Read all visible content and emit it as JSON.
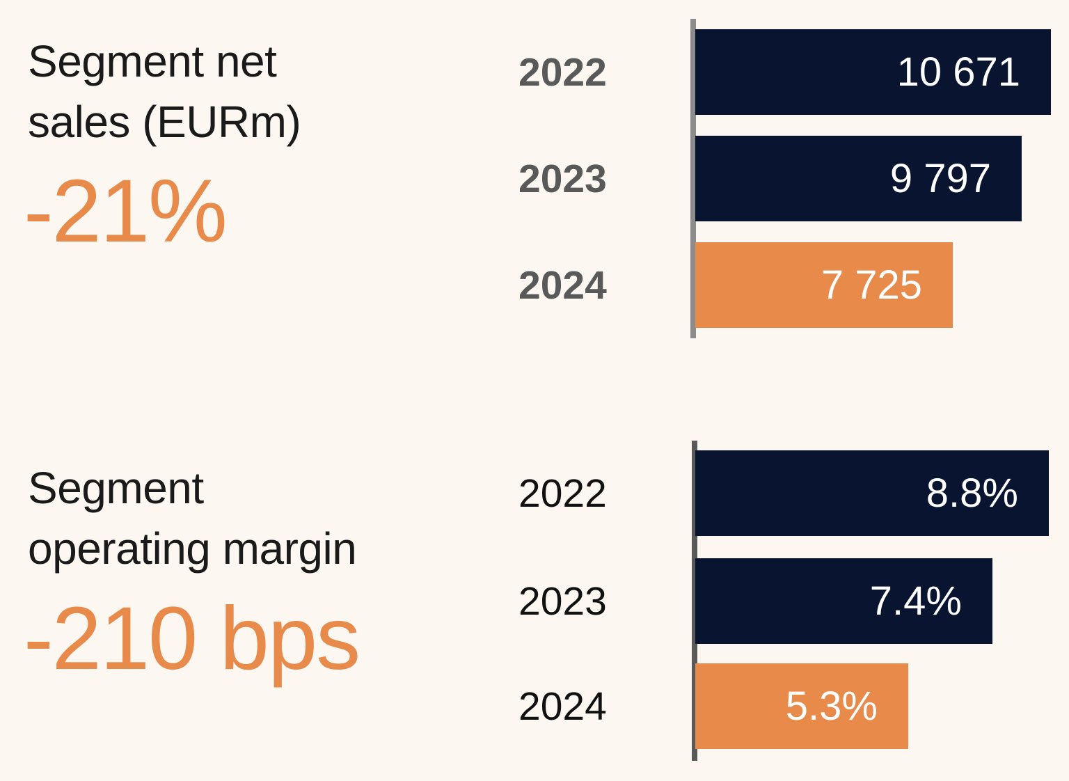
{
  "background": "#FCF7F1",
  "colors": {
    "navy": "#081430",
    "orange": "#E78A4A",
    "axis_top": "#8C8C8C",
    "axis_bottom": "#595959",
    "year_top": "#595959",
    "year_bottom": "#111111",
    "title_text": "#1A1A1A",
    "stat_text": "#E78A4A",
    "value_text": "#FFFFFF"
  },
  "chart_data": [
    {
      "type": "bar",
      "orientation": "horizontal",
      "title": "Segment net sales (EURm)",
      "title_lines": [
        "Segment net",
        "sales (EURm)"
      ],
      "highlight_stat": "-21%",
      "categories": [
        "2022",
        "2023",
        "2024"
      ],
      "values": [
        10671,
        9797,
        7725
      ],
      "value_labels": [
        "10 671",
        "9 797",
        "7 725"
      ],
      "bar_colors": [
        "#081430",
        "#081430",
        "#E78A4A"
      ],
      "xlim": [
        0,
        10671
      ],
      "grid": false,
      "legend": "none",
      "value_label_position": "inside-right",
      "highlight_note": "2024 bar highlighted in orange"
    },
    {
      "type": "bar",
      "orientation": "horizontal",
      "title": "Segment operating margin",
      "title_lines": [
        "Segment",
        "operating margin"
      ],
      "highlight_stat": "-210 bps",
      "categories": [
        "2022",
        "2023",
        "2024"
      ],
      "values": [
        8.8,
        7.4,
        5.3
      ],
      "value_labels": [
        "8.8%",
        "7.4%",
        "5.3%"
      ],
      "bar_colors": [
        "#081430",
        "#081430",
        "#E78A4A"
      ],
      "xlim": [
        0,
        8.8
      ],
      "grid": false,
      "legend": "none",
      "value_label_position": "inside-right",
      "highlight_note": "2024 bar highlighted in orange"
    }
  ]
}
